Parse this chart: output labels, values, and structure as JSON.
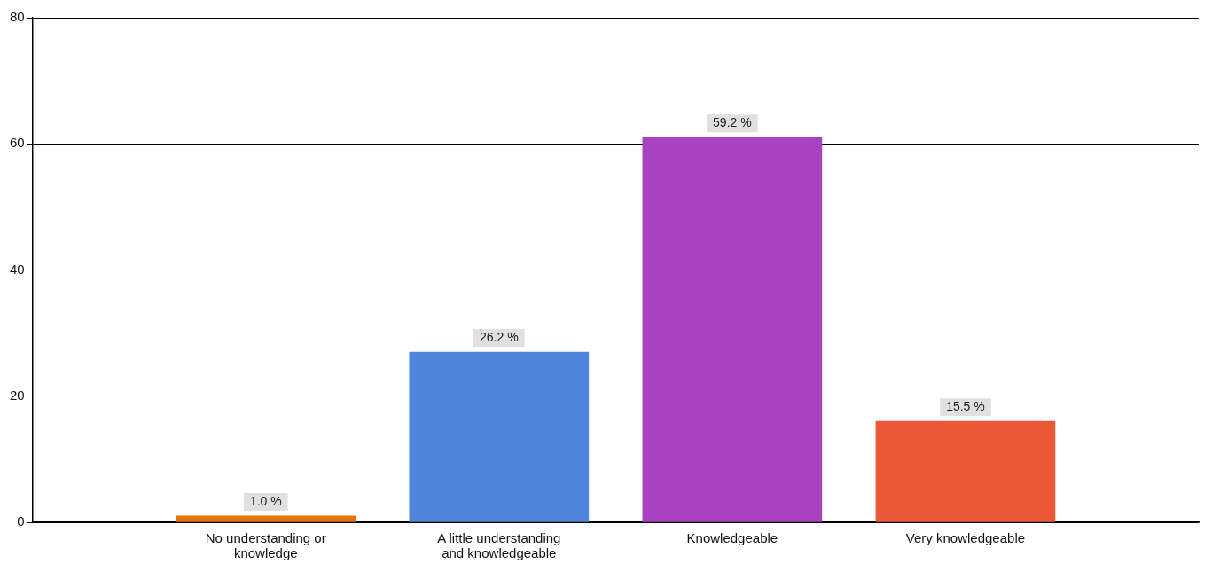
{
  "chart_data": {
    "type": "bar",
    "categories": [
      "No understanding or knowledge",
      "A little understanding and knowledgeable",
      "Knowledgeable",
      "Very knowledgeable"
    ],
    "values": [
      1,
      27,
      61,
      16
    ],
    "colors": [
      "#e8720c",
      "#4f86dc",
      "#a842c0",
      "#ea5838"
    ],
    "annotations": [
      {
        "text": "1.0 %",
        "x": "No understanding or knowledge",
        "y": 1
      },
      {
        "text": "26.2 %",
        "x": "A little understanding and knowledgeable",
        "y": 27
      },
      {
        "text": "59.2 %",
        "x": "Knowledgeable",
        "y": 61
      },
      {
        "text": "15.5 %",
        "x": "Very knowledgeable",
        "y": 16
      }
    ],
    "ylim": [
      0,
      80
    ],
    "yticks": [
      0,
      20,
      40,
      60,
      80
    ],
    "grid": "y",
    "legend": false
  }
}
